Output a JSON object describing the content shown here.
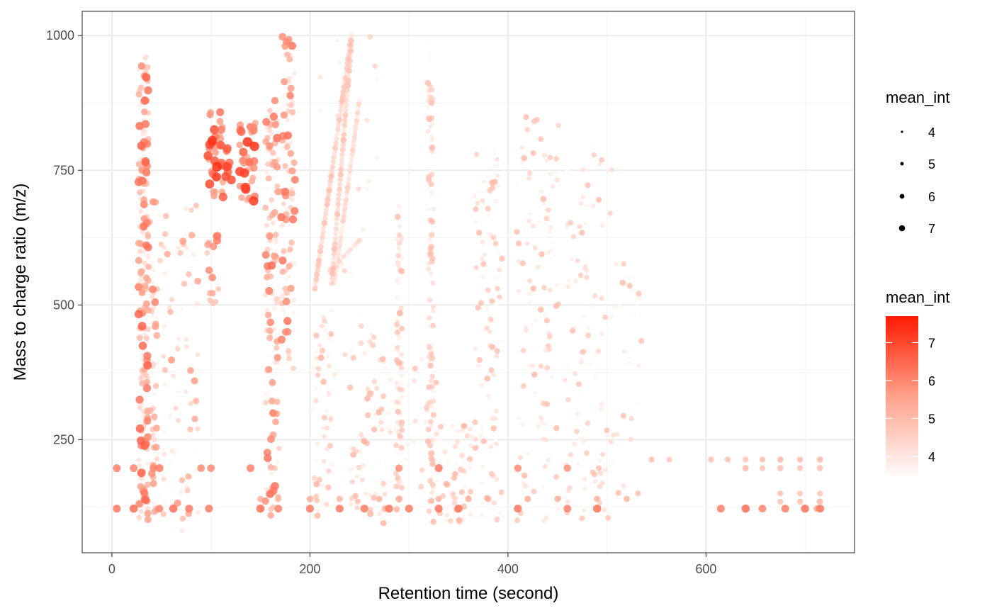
{
  "chart_data": {
    "type": "scatter",
    "title": "",
    "xlabel": "Retention time (second)",
    "ylabel": "Mass to charge ratio (m/z)",
    "xlim": [
      -30,
      750
    ],
    "ylim": [
      40,
      1045
    ],
    "x_ticks": [
      0,
      200,
      400,
      600
    ],
    "y_ticks": [
      250,
      500,
      750,
      1000
    ],
    "x_tick_labels": [
      "0",
      "200",
      "400",
      "600"
    ],
    "y_tick_labels": [
      "250",
      "500",
      "750",
      "1000"
    ],
    "grid": true,
    "legend_position": "right",
    "size_legend": {
      "title": "mean_int",
      "levels": [
        4,
        5,
        6,
        7
      ],
      "labels": [
        "4",
        "5",
        "6",
        "7"
      ]
    },
    "color_legend": {
      "title": "mean_int",
      "range": [
        3.4,
        7.7
      ],
      "ticks": [
        4,
        5,
        6,
        7
      ],
      "tick_labels": [
        "4",
        "5",
        "6",
        "7"
      ],
      "low_color": "#ffffff",
      "high_color": "#ff1a00"
    },
    "clusters": [
      {
        "x": 32,
        "y": [
          90,
          980
        ],
        "n": 220,
        "spread": 5,
        "int": [
          3.6,
          6.6
        ]
      },
      {
        "x": 43,
        "y": [
          110,
          600
        ],
        "n": 45,
        "spread": 3,
        "int": [
          3.6,
          6.2
        ]
      },
      {
        "x": 105,
        "y": [
          700,
          860
        ],
        "n": 40,
        "spread": 8,
        "int": [
          5.2,
          7.4
        ]
      },
      {
        "x": 115,
        "y": [
          730,
          800
        ],
        "n": 12,
        "spread": 6,
        "int": [
          6.0,
          7.4
        ]
      },
      {
        "x": 137,
        "y": [
          690,
          840
        ],
        "n": 40,
        "spread": 8,
        "int": [
          5.0,
          7.3
        ]
      },
      {
        "x": 102,
        "y": [
          500,
          630
        ],
        "n": 15,
        "spread": 6,
        "int": [
          4.6,
          6.3
        ]
      },
      {
        "x": 162,
        "y": [
          100,
          880
        ],
        "n": 140,
        "spread": 7,
        "int": [
          3.6,
          6.4
        ]
      },
      {
        "x": 178,
        "y": [
          380,
          1000
        ],
        "n": 110,
        "spread": 7,
        "int": [
          3.6,
          6.4
        ]
      },
      {
        "x": 212,
        "y": [
          100,
          500
        ],
        "n": 60,
        "spread": 10,
        "int": [
          3.5,
          5.2
        ]
      },
      {
        "x": 258,
        "y": [
          90,
          450
        ],
        "n": 70,
        "spread": 18,
        "int": [
          3.5,
          5.3
        ]
      },
      {
        "x": 290,
        "y": [
          110,
          690
        ],
        "n": 90,
        "spread": 3,
        "int": [
          3.5,
          5.2
        ]
      },
      {
        "x": 322,
        "y": [
          90,
          1000
        ],
        "n": 130,
        "spread": 3,
        "int": [
          3.4,
          5.0
        ]
      },
      {
        "x": 345,
        "y": [
          90,
          280
        ],
        "n": 60,
        "spread": 18,
        "int": [
          3.5,
          5.2
        ]
      },
      {
        "x": 380,
        "y": [
          90,
          800
        ],
        "n": 110,
        "spread": 14,
        "int": [
          3.4,
          5.0
        ]
      },
      {
        "x": 430,
        "y": [
          100,
          850
        ],
        "n": 130,
        "spread": 22,
        "int": [
          3.4,
          5.0
        ]
      },
      {
        "x": 480,
        "y": [
          100,
          800
        ],
        "n": 120,
        "spread": 25,
        "int": [
          3.4,
          4.9
        ]
      },
      {
        "x": 520,
        "y": [
          150,
          600
        ],
        "n": 30,
        "spread": 15,
        "int": [
          3.5,
          5.0
        ]
      },
      {
        "x": 60,
        "y": [
          80,
          700
        ],
        "n": 120,
        "spread": 28,
        "int": [
          3.5,
          5.8
        ]
      },
      {
        "x": 300,
        "y": [
          150,
          400
        ],
        "n": 50,
        "spread": 30,
        "int": [
          3.4,
          4.8
        ]
      },
      {
        "x": 240,
        "y": [
          300,
          1000
        ],
        "n": 40,
        "spread": 30,
        "int": [
          3.4,
          4.5
        ]
      }
    ],
    "rows": [
      {
        "y": 122,
        "x": [
          5,
          22,
          48,
          62,
          78,
          98,
          150,
          168,
          200,
          230,
          255,
          280,
          300,
          330,
          350,
          410,
          460,
          490,
          615,
          640,
          657,
          680,
          700,
          715
        ],
        "int": 6.2
      },
      {
        "y": 197,
        "x": [
          5,
          22,
          42,
          48,
          90,
          100,
          140,
          290,
          330,
          410,
          460
        ],
        "int": 6.0
      },
      {
        "y": 140,
        "x": [
          150,
          168,
          200,
          230,
          270,
          290,
          330,
          360,
          380,
          420,
          450,
          490,
          520
        ],
        "int": 5.3
      },
      {
        "y": 213,
        "x": [
          545,
          563,
          605,
          622,
          640,
          657,
          675,
          695,
          715
        ],
        "int": 4.9
      },
      {
        "y": 197,
        "x": [
          640,
          657,
          675,
          695,
          715
        ],
        "int": 4.9
      },
      {
        "y": 150,
        "x": [
          675,
          695,
          715
        ],
        "int": 5.0
      },
      {
        "y": 135,
        "x": [
          675,
          695,
          715
        ],
        "int": 5.0
      },
      {
        "y": 122,
        "x": [
          712,
          716
        ],
        "int": 5.5
      }
    ],
    "streaks": [
      {
        "x": [
          205,
          242
        ],
        "y": [
          530,
          1000
        ],
        "n": 55,
        "int": [
          4.0,
          5.0
        ]
      },
      {
        "x": [
          222,
          242
        ],
        "y": [
          540,
          990
        ],
        "n": 50,
        "int": [
          4.0,
          5.0
        ]
      },
      {
        "x": [
          225,
          250
        ],
        "y": [
          540,
          880
        ],
        "n": 45,
        "int": [
          3.8,
          4.6
        ]
      },
      {
        "x": [
          218,
          250
        ],
        "y": [
          560,
          620
        ],
        "n": 15,
        "int": [
          3.6,
          4.4
        ]
      }
    ]
  }
}
